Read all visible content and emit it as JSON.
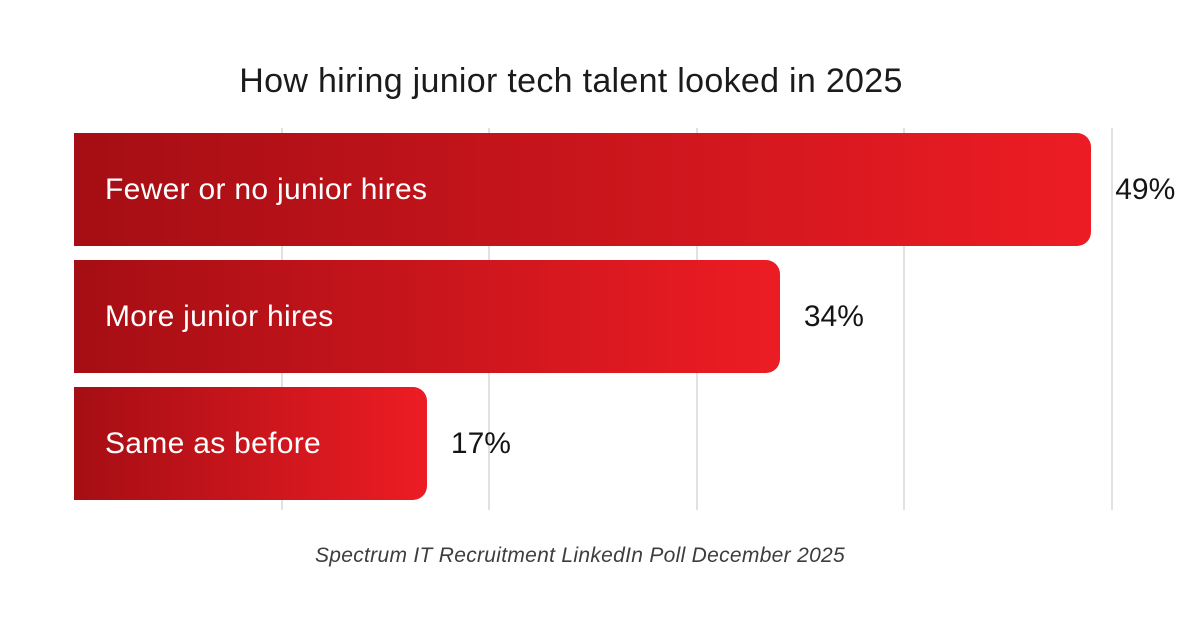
{
  "title": "How hiring junior tech talent looked in 2025",
  "caption": "Spectrum IT Recruitment LinkedIn Poll December 2025",
  "colors": {
    "background": "#ffffff",
    "bar_gradient_start": "#a50e14",
    "bar_gradient_end": "#ed1c24",
    "gridline": "#e1e1e1",
    "title_text": "#1b1b1b",
    "bar_label_text": "#ffffff",
    "value_text": "#151515",
    "caption_text": "#3d3d3d"
  },
  "chart_data": {
    "type": "bar",
    "orientation": "horizontal",
    "title": "How hiring junior tech talent looked in 2025",
    "categories": [
      "Fewer or no junior hires",
      "More junior hires",
      "Same as before"
    ],
    "values": [
      49,
      34,
      17
    ],
    "value_labels": [
      "49%",
      "34%",
      "17%"
    ],
    "xlabel": "",
    "ylabel": "",
    "xlim": [
      0,
      50
    ],
    "gridline_values": [
      10,
      20,
      30,
      40,
      50
    ],
    "grid": "vertical-only",
    "legend_position": "none",
    "source_note": "Spectrum IT Recruitment LinkedIn Poll December 2025"
  }
}
